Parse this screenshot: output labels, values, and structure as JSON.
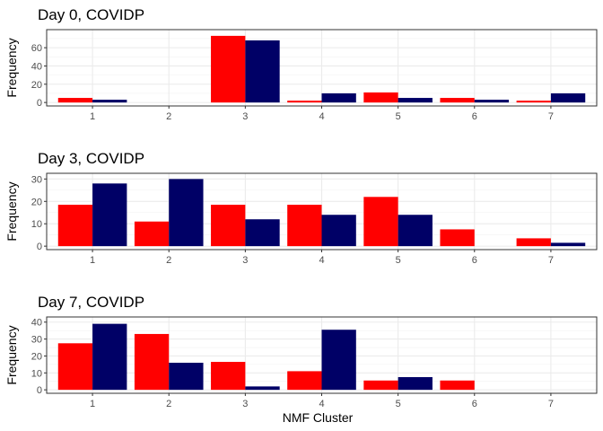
{
  "figure": {
    "xlabel": "NMF Cluster",
    "ylabel": "Frequency"
  },
  "chart_data": [
    {
      "type": "bar",
      "title": "Day 0, COVIDP",
      "xlabel": "",
      "ylabel": "Frequency",
      "categories": [
        "1",
        "2",
        "3",
        "4",
        "5",
        "6",
        "7"
      ],
      "yticks": [
        0,
        20,
        40,
        60
      ],
      "ylim": [
        0,
        76
      ],
      "grid": true,
      "series": [
        {
          "color": "#ff0000",
          "values": [
            5,
            0,
            73,
            2,
            11,
            5,
            2
          ]
        },
        {
          "color": "#000066",
          "values": [
            3,
            0,
            68,
            10,
            5,
            3,
            10
          ]
        }
      ]
    },
    {
      "type": "bar",
      "title": "Day 3, COVIDP",
      "xlabel": "",
      "ylabel": "Frequency",
      "categories": [
        "1",
        "2",
        "3",
        "4",
        "5",
        "6",
        "7"
      ],
      "yticks": [
        0,
        10,
        20,
        30
      ],
      "ylim": [
        0,
        31
      ],
      "grid": true,
      "series": [
        {
          "color": "#ff0000",
          "values": [
            18.5,
            11,
            18.5,
            18.5,
            22,
            7.5,
            3.5
          ]
        },
        {
          "color": "#000066",
          "values": [
            28,
            30,
            12,
            14,
            14,
            0,
            1.5
          ]
        }
      ]
    },
    {
      "type": "bar",
      "title": "Day 7, COVIDP",
      "xlabel": "NMF Cluster",
      "ylabel": "Frequency",
      "categories": [
        "1",
        "2",
        "3",
        "4",
        "5",
        "6",
        "7"
      ],
      "yticks": [
        0,
        10,
        20,
        30,
        40
      ],
      "ylim": [
        0,
        41
      ],
      "grid": true,
      "series": [
        {
          "color": "#ff0000",
          "values": [
            27.5,
            33,
            16.5,
            11,
            5.5,
            5.5,
            0
          ]
        },
        {
          "color": "#000066",
          "values": [
            39,
            16,
            2,
            35.5,
            7.5,
            0,
            0
          ]
        }
      ]
    }
  ]
}
